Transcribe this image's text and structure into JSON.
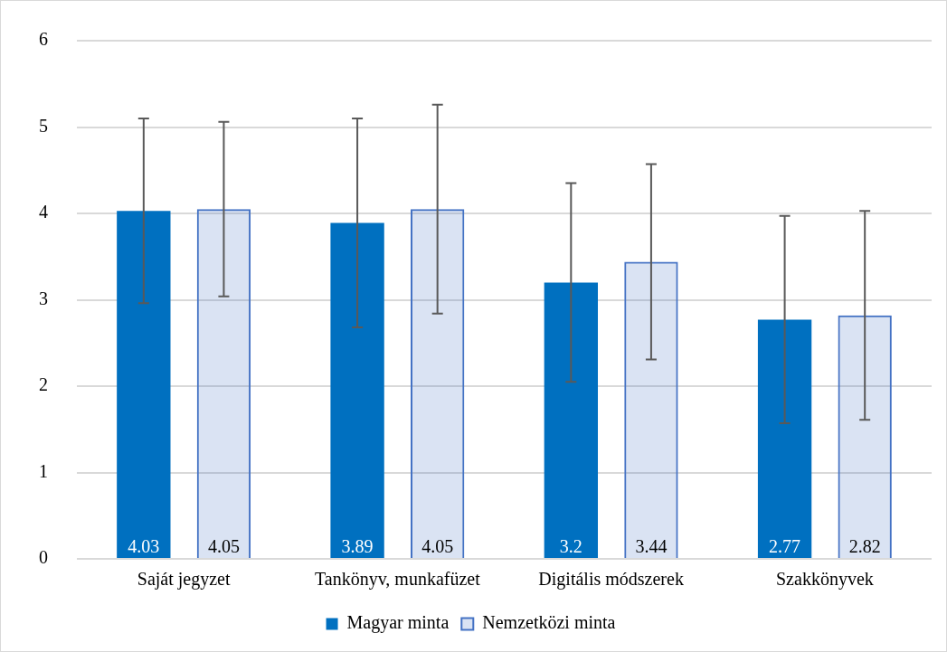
{
  "chart_data": {
    "type": "bar",
    "categories": [
      "Saját jegyzet",
      "Tankönyv, munkafüzet",
      "Digitális módszerek",
      "Szakkönyvek"
    ],
    "series": [
      {
        "name": "Magyar minta",
        "color": "#0070c0",
        "values": [
          4.03,
          3.89,
          3.2,
          2.77
        ],
        "errors": [
          1.07,
          1.21,
          1.15,
          1.2
        ]
      },
      {
        "name": "Nemzetközi minta",
        "color": "#4472c4",
        "values": [
          4.05,
          4.05,
          3.44,
          2.82
        ],
        "errors": [
          1.01,
          1.21,
          1.13,
          1.21
        ]
      }
    ],
    "ylim": [
      0,
      6
    ],
    "yticks": [
      0,
      1,
      2,
      3,
      4,
      5,
      6
    ],
    "grid": "y",
    "legend": "bottom",
    "data_labels": true
  }
}
